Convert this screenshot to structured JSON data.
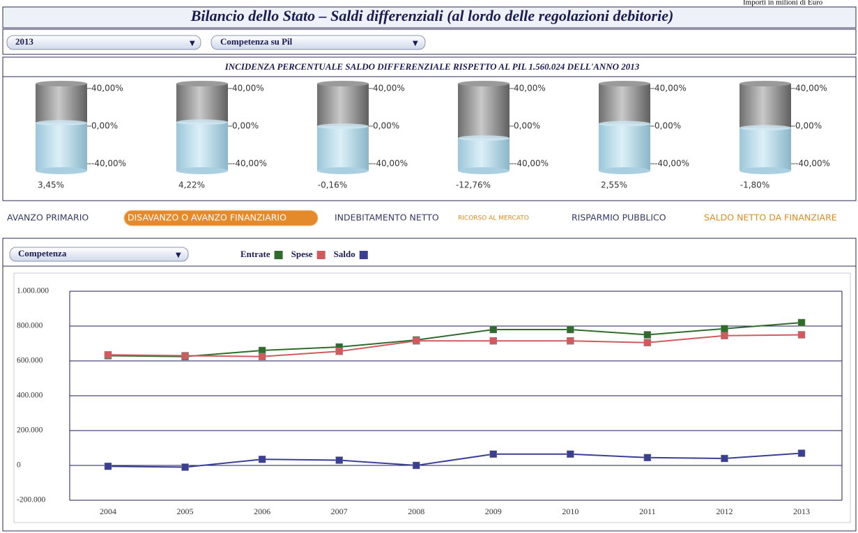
{
  "header": {
    "title": "Bilancio dello Stato – Saldi differenziali (al lordo delle regolazioni debitorie)",
    "note": "Importi in milioni di Euro"
  },
  "selectors": [
    "2013",
    "Competenza su Pil"
  ],
  "gauges": {
    "subtitle": "INCIDENZA PERCENTUALE SALDO DIFFERENZIALE RISPETTO AL PIL  1.560.024 DELL'ANNO 2013",
    "ylim": [
      -40,
      40
    ],
    "yticks": [
      {
        "value": 40,
        "label": "40,00%"
      },
      {
        "value": 0,
        "label": "0,00%"
      },
      {
        "value": -40,
        "label": "-40,00%"
      }
    ],
    "values": [
      3.45,
      4.22,
      -0.16,
      -12.76,
      2.55,
      -1.8
    ],
    "value_labels": [
      "3,45%",
      "4,22%",
      "-0,16%",
      "-12,76%",
      "2,55%",
      "-1,80%"
    ]
  },
  "tabs": [
    "AVANZO PRIMARIO",
    "DISAVANZO O AVANZO FINANZIARIO",
    "INDEBITAMENTO NETTO",
    "RICORSO AL MERCATO",
    "RISPARMIO PUBBLICO",
    "SALDO NETTO DA FINANZIARE"
  ],
  "chart_selector": "Competenza",
  "chart_data": {
    "type": "line",
    "categories": [
      "2004",
      "2005",
      "2006",
      "2007",
      "2008",
      "2009",
      "2010",
      "2011",
      "2012",
      "2013"
    ],
    "series": [
      {
        "name": "Entrate",
        "color": "#2f6b2a",
        "values": [
          630000,
          625000,
          660000,
          680000,
          720000,
          780000,
          780000,
          750000,
          785000,
          820000
        ]
      },
      {
        "name": "Spese",
        "color": "#d05a5e",
        "values": [
          635000,
          630000,
          625000,
          655000,
          715000,
          715000,
          715000,
          705000,
          745000,
          750000
        ]
      },
      {
        "name": "Saldo",
        "color": "#3b3f94",
        "values": [
          -5000,
          -10000,
          35000,
          30000,
          0,
          65000,
          65000,
          45000,
          40000,
          70000
        ]
      }
    ],
    "ylim": [
      -200000,
      1000000
    ],
    "yticks": [
      {
        "value": 1000000,
        "label": "1.000.000"
      },
      {
        "value": 800000,
        "label": "800.000"
      },
      {
        "value": 600000,
        "label": "600.000"
      },
      {
        "value": 400000,
        "label": "400.000"
      },
      {
        "value": 200000,
        "label": "200.000"
      },
      0,
      {
        "value": -200000,
        "label": "-200.000"
      }
    ],
    "grid": true
  }
}
